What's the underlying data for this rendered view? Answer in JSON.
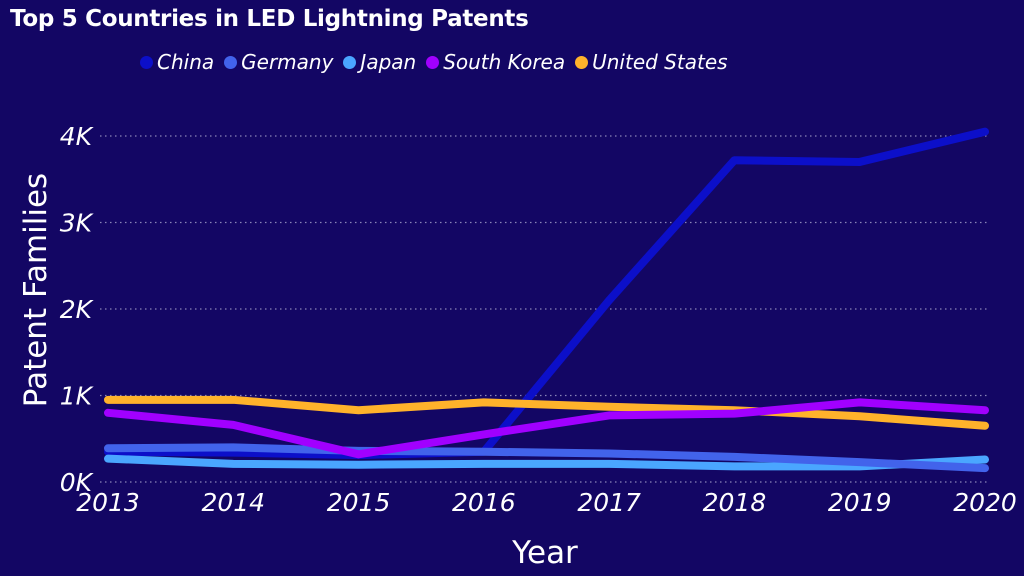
{
  "chart_data": {
    "type": "line",
    "title": "Top 5 Countries in LED Lightning Patents",
    "xlabel": "Year",
    "ylabel": "Patent Families",
    "x": [
      "2013",
      "2014",
      "2015",
      "2016",
      "2017",
      "2018",
      "2019",
      "2020"
    ],
    "yticks": [
      "0K",
      "1K",
      "2K",
      "3K",
      "4K"
    ],
    "ytick_values": [
      0,
      1000,
      2000,
      3000,
      4000
    ],
    "ylim": [
      0,
      4000
    ],
    "grid": "horizontal dotted",
    "legend_position": "top",
    "series": [
      {
        "name": "China",
        "color": "#0c0fc9",
        "values": [
          350,
          340,
          310,
          350,
          2100,
          3720,
          3700,
          4050
        ]
      },
      {
        "name": "Germany",
        "color": "#4263eb",
        "values": [
          390,
          400,
          360,
          350,
          330,
          290,
          230,
          160
        ]
      },
      {
        "name": "Japan",
        "color": "#4aa6ff",
        "values": [
          270,
          210,
          200,
          210,
          210,
          180,
          180,
          260
        ]
      },
      {
        "name": "South Korea",
        "color": "#a100ff",
        "values": [
          800,
          660,
          320,
          550,
          770,
          790,
          920,
          830
        ]
      },
      {
        "name": "United States",
        "color": "#ffb22b",
        "values": [
          950,
          950,
          830,
          920,
          870,
          830,
          760,
          650
        ]
      }
    ]
  }
}
